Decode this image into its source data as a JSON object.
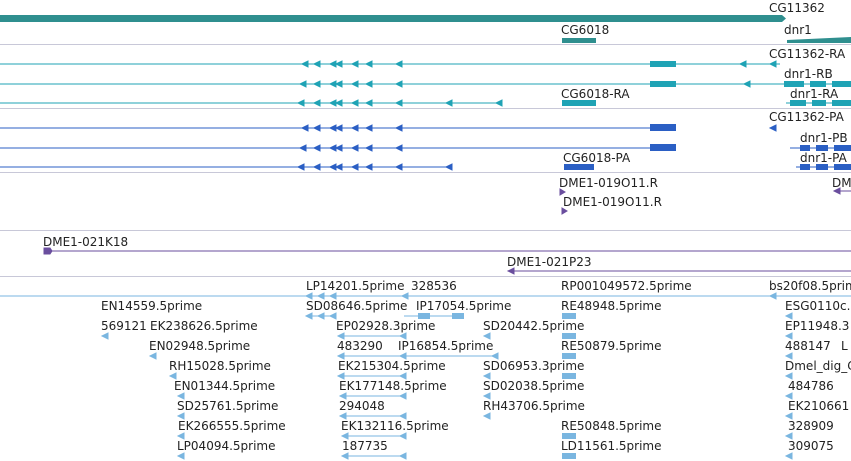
{
  "colors": {
    "gene": "#2f8f8f",
    "transcript_cyan": "#1fa3b5",
    "transcript_blue": "#2b5fc4",
    "contig": "#6a4e9e",
    "est": "#7ab6e0",
    "separator": "#c8c8d8"
  },
  "tracks": {
    "genes": {
      "labels": {
        "cg11362": "CG11362",
        "cg6018": "CG6018",
        "dnr1": "dnr1"
      }
    },
    "transcripts_cyan": {
      "labels": {
        "cg11362_ra": "CG11362-RA",
        "dnr1_rb": "dnr1-RB",
        "cg6018_ra": "CG6018-RA",
        "dnr1_ra": "dnr1-RA"
      }
    },
    "transcripts_blue": {
      "labels": {
        "cg11362_pa": "CG11362-PA",
        "dnr1_pb": "dnr1-PB",
        "cg6018_pa": "CG6018-PA",
        "dnr1_pa": "dnr1-PA"
      }
    },
    "contigs": {
      "labels": {
        "c1": "DME1-019O11.R",
        "c2": "DME1-019O11.R",
        "c3": "DME1-021K18",
        "c4": "DME1-021P23",
        "c5": "DM"
      }
    },
    "ests": {
      "labels": [
        "LP14201.5prime",
        "328536",
        "RP001049572.5prime",
        "bs20f08.5prime",
        "EN14559.5prime",
        "SD08646.5prime",
        "IP17054.5prime",
        "RE48948.5prime",
        "ESG0110c.E",
        "569121",
        "EK238626.5prime",
        "EP02928.3prime",
        "SD20442.5prime",
        "EP11948.3",
        "EN02948.5prime",
        "483290",
        "IP16854.5prime",
        "RE50879.5prime",
        "488147",
        "L",
        "RH15028.5prime",
        "EK215304.5prime",
        "SD06953.3prime",
        "Dmel_dig_C",
        "EN01344.5prime",
        "EK177148.5prime",
        "SD02038.5prime",
        "484786",
        "SD25761.5prime",
        "294048",
        "RH43706.5prime",
        "EK210661",
        "EK266555.5prime",
        "EK132116.5prime",
        "RE50848.5prime",
        "328909",
        "LP04094.5prime",
        "187735",
        "LD11561.5prime",
        "309075"
      ]
    }
  }
}
